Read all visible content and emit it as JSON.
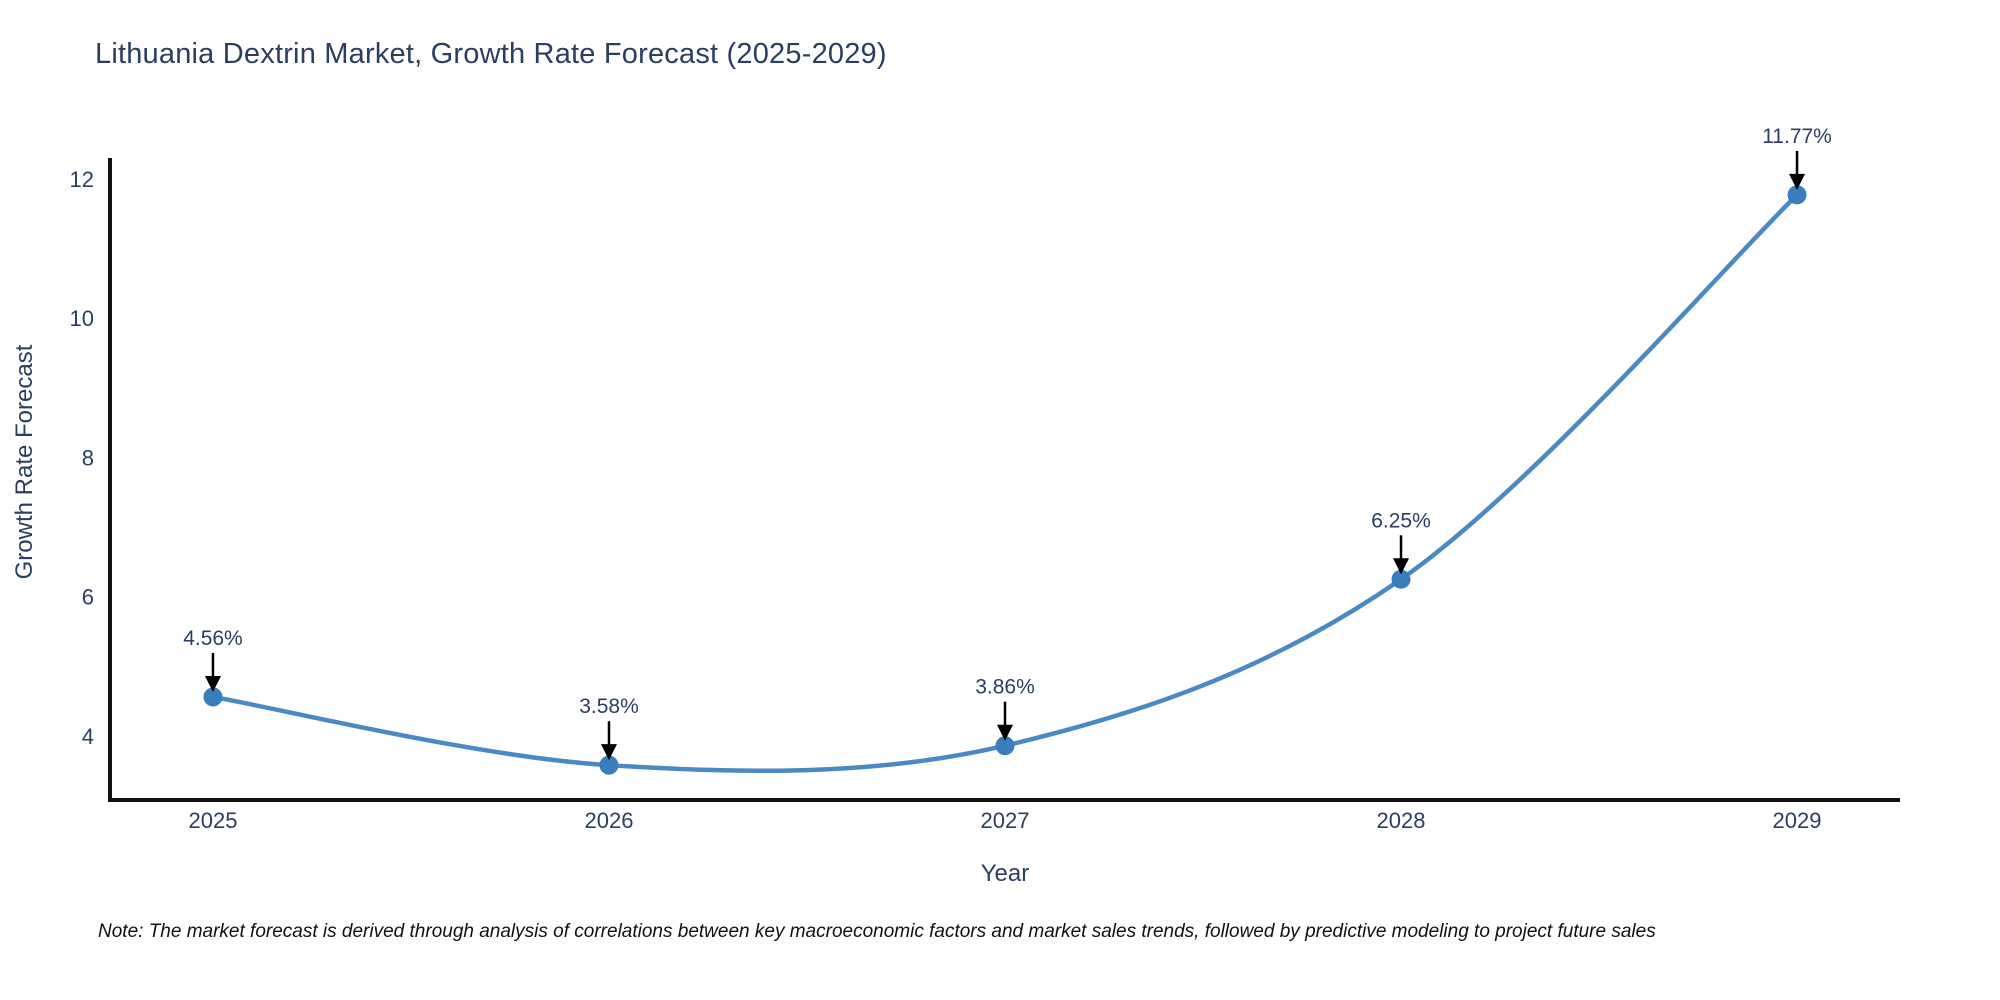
{
  "title": "Lithuania Dextrin Market, Growth Rate Forecast (2025-2029)",
  "note": "Note: The market forecast is derived through analysis of correlations between key macroeconomic factors and market sales trends, followed by predictive modeling to project future sales",
  "colors": {
    "line": "#4a89c4",
    "marker": "#3b7cba",
    "text": "#2a3f5f",
    "axis": "#111111",
    "arrow": "#000000",
    "background": "#ffffff"
  },
  "chart_data": {
    "type": "line",
    "title": "Lithuania Dextrin Market, Growth Rate Forecast (2025-2029)",
    "xlabel": "Year",
    "ylabel": "Growth Rate Forecast",
    "x": [
      2025,
      2026,
      2027,
      2028,
      2029
    ],
    "values": [
      4.56,
      3.58,
      3.86,
      6.25,
      11.77
    ],
    "point_labels": [
      "4.56%",
      "3.58%",
      "3.86%",
      "6.25%",
      "11.77%"
    ],
    "x_tick_labels": [
      "2025",
      "2026",
      "2027",
      "2028",
      "2029"
    ],
    "y_tick_values": [
      4,
      6,
      8,
      10,
      12
    ],
    "y_tick_labels": [
      "4",
      "6",
      "8",
      "10",
      "12"
    ],
    "xlim": [
      2024.74,
      2029.26
    ],
    "ylim": [
      3.08,
      12.3
    ],
    "line_shape": "spline",
    "grid": false,
    "legend": false,
    "annotations_have_arrows": true
  }
}
